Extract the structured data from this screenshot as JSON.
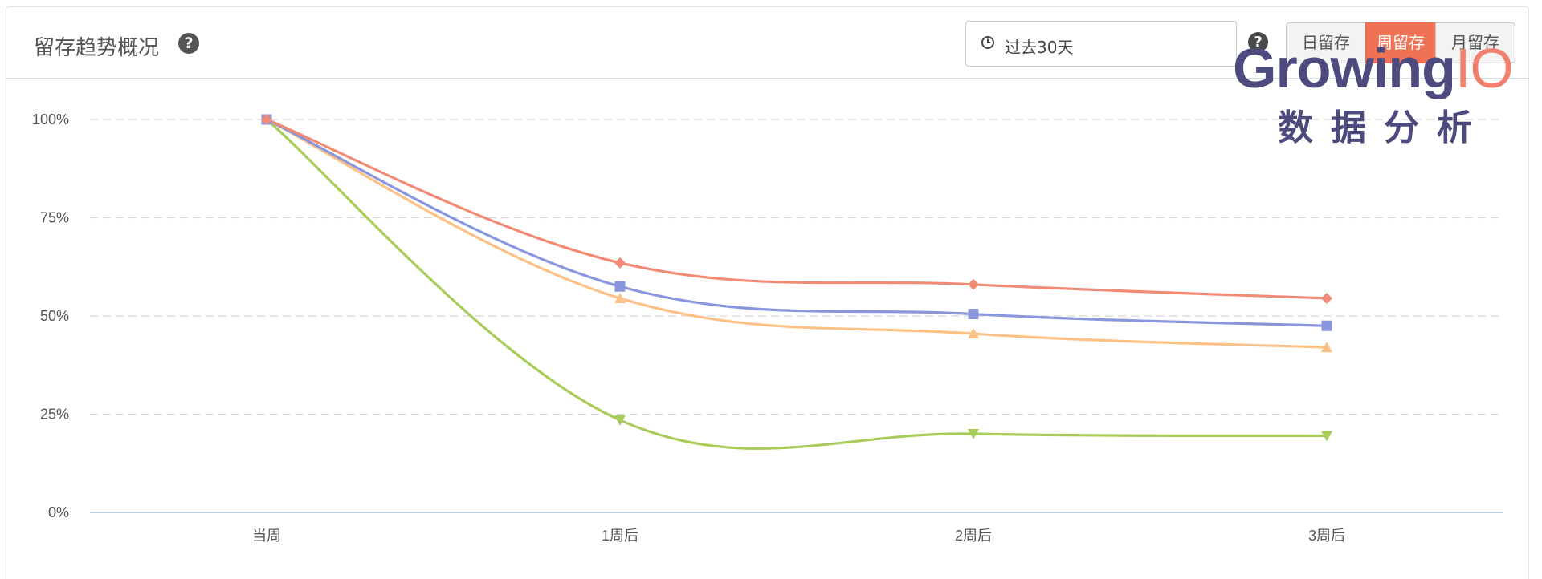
{
  "header": {
    "title": "留存趋势概况",
    "date_range": "过去30天",
    "tabs": [
      {
        "label": "日留存",
        "active": false
      },
      {
        "label": "周留存",
        "active": true
      },
      {
        "label": "月留存",
        "active": false
      }
    ]
  },
  "watermark": {
    "brand_growing": "Growing",
    "brand_io": "IO",
    "tagline": "数据分析"
  },
  "icons": {
    "help": "question-circle-icon",
    "clock": "clock-icon"
  },
  "colors": {
    "accent": "#f07153",
    "series_red": "#f28b76",
    "series_blue": "#8a96dd",
    "series_orange": "#fdc185",
    "series_green": "#a8cc5a"
  },
  "chart_data": {
    "type": "line",
    "categories": [
      "当周",
      "1周后",
      "2周后",
      "3周后"
    ],
    "ylim": [
      0,
      100
    ],
    "yticks": [
      "0%",
      "25%",
      "50%",
      "75%",
      "100%"
    ],
    "ytick_values": [
      0,
      25,
      50,
      75,
      100
    ],
    "grid": true,
    "series": [
      {
        "color": "#f28b76",
        "marker": "diamond",
        "values": [
          100,
          63.5,
          58,
          54.5
        ]
      },
      {
        "color": "#8a96dd",
        "marker": "square",
        "values": [
          100,
          57.5,
          50.5,
          47.5
        ]
      },
      {
        "color": "#fdc185",
        "marker": "triangle-up",
        "values": [
          100,
          54.5,
          45.5,
          42
        ]
      },
      {
        "color": "#a8cc5a",
        "marker": "triangle-down",
        "values": [
          100,
          23.5,
          20,
          19.5
        ]
      }
    ]
  }
}
